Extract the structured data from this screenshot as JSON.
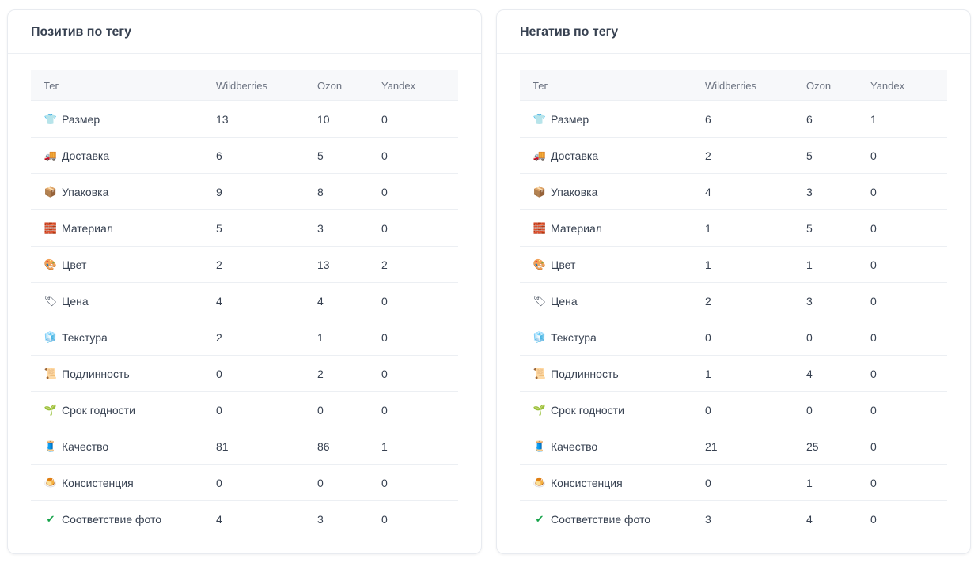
{
  "positive": {
    "title": "Позитив по тегу",
    "columns": [
      "Тег",
      "Wildberries",
      "Ozon",
      "Yandex"
    ],
    "rows": [
      {
        "icon": "shirt-icon",
        "glyph": "👕",
        "tag": "Размер",
        "wb": "13",
        "ozon": "10",
        "yandex": "0"
      },
      {
        "icon": "delivery-truck-icon",
        "glyph": "🚚",
        "tag": "Доставка",
        "wb": "6",
        "ozon": "5",
        "yandex": "0"
      },
      {
        "icon": "package-box-icon",
        "glyph": "📦",
        "tag": "Упаковка",
        "wb": "9",
        "ozon": "8",
        "yandex": "0"
      },
      {
        "icon": "brick-icon",
        "glyph": "🧱",
        "tag": "Материал",
        "wb": "5",
        "ozon": "3",
        "yandex": "0"
      },
      {
        "icon": "palette-icon",
        "glyph": "🎨",
        "tag": "Цвет",
        "wb": "2",
        "ozon": "13",
        "yandex": "2"
      },
      {
        "icon": "price-tag-icon",
        "glyph": "🏷",
        "tag": "Цена",
        "wb": "4",
        "ozon": "4",
        "yandex": "0"
      },
      {
        "icon": "ice-cube-icon",
        "glyph": "🧊",
        "tag": "Текстура",
        "wb": "2",
        "ozon": "1",
        "yandex": "0"
      },
      {
        "icon": "scroll-icon",
        "glyph": "📜",
        "tag": "Подлинность",
        "wb": "0",
        "ozon": "2",
        "yandex": "0"
      },
      {
        "icon": "sprout-icon",
        "glyph": "🌱",
        "tag": "Срок годности",
        "wb": "0",
        "ozon": "0",
        "yandex": "0"
      },
      {
        "icon": "thread-spool-icon",
        "glyph": "🧵",
        "tag": "Качество",
        "wb": "81",
        "ozon": "86",
        "yandex": "1"
      },
      {
        "icon": "pudding-icon",
        "glyph": "🍮",
        "tag": "Консистенция",
        "wb": "0",
        "ozon": "0",
        "yandex": "0"
      },
      {
        "icon": "check-mark-icon",
        "glyph": "✔",
        "tag": "Соответствие фото",
        "wb": "4",
        "ozon": "3",
        "yandex": "0"
      }
    ]
  },
  "negative": {
    "title": "Негатив по тегу",
    "columns": [
      "Тег",
      "Wildberries",
      "Ozon",
      "Yandex"
    ],
    "rows": [
      {
        "icon": "shirt-icon",
        "glyph": "👕",
        "tag": "Размер",
        "wb": "6",
        "ozon": "6",
        "yandex": "1"
      },
      {
        "icon": "delivery-truck-icon",
        "glyph": "🚚",
        "tag": "Доставка",
        "wb": "2",
        "ozon": "5",
        "yandex": "0"
      },
      {
        "icon": "package-box-icon",
        "glyph": "📦",
        "tag": "Упаковка",
        "wb": "4",
        "ozon": "3",
        "yandex": "0"
      },
      {
        "icon": "brick-icon",
        "glyph": "🧱",
        "tag": "Материал",
        "wb": "1",
        "ozon": "5",
        "yandex": "0"
      },
      {
        "icon": "palette-icon",
        "glyph": "🎨",
        "tag": "Цвет",
        "wb": "1",
        "ozon": "1",
        "yandex": "0"
      },
      {
        "icon": "price-tag-icon",
        "glyph": "🏷",
        "tag": "Цена",
        "wb": "2",
        "ozon": "3",
        "yandex": "0"
      },
      {
        "icon": "ice-cube-icon",
        "glyph": "🧊",
        "tag": "Текстура",
        "wb": "0",
        "ozon": "0",
        "yandex": "0"
      },
      {
        "icon": "scroll-icon",
        "glyph": "📜",
        "tag": "Подлинность",
        "wb": "1",
        "ozon": "4",
        "yandex": "0"
      },
      {
        "icon": "sprout-icon",
        "glyph": "🌱",
        "tag": "Срок годности",
        "wb": "0",
        "ozon": "0",
        "yandex": "0"
      },
      {
        "icon": "thread-spool-icon",
        "glyph": "🧵",
        "tag": "Качество",
        "wb": "21",
        "ozon": "25",
        "yandex": "0"
      },
      {
        "icon": "pudding-icon",
        "glyph": "🍮",
        "tag": "Консистенция",
        "wb": "0",
        "ozon": "1",
        "yandex": "0"
      },
      {
        "icon": "check-mark-icon",
        "glyph": "✔",
        "tag": "Соответствие фото",
        "wb": "3",
        "ozon": "4",
        "yandex": "0"
      }
    ]
  },
  "colors": {
    "check_mark": "#16a34a"
  }
}
